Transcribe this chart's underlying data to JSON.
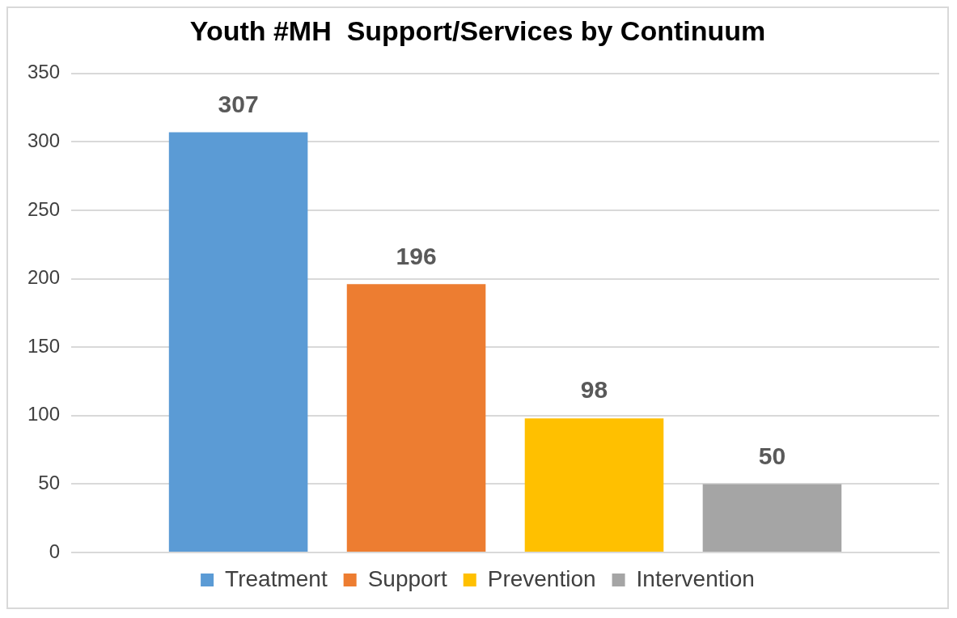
{
  "chart_data": {
    "type": "bar",
    "title": "Youth #MH  Support/Services by Continuum",
    "categories": [
      null
    ],
    "series": [
      {
        "name": "Treatment",
        "color": "#5b9bd5",
        "values": [
          307
        ]
      },
      {
        "name": "Support",
        "color": "#ed7d31",
        "values": [
          196
        ]
      },
      {
        "name": "Prevention",
        "color": "#ffc000",
        "values": [
          98
        ]
      },
      {
        "name": "Intervention",
        "color": "#a5a5a5",
        "values": [
          50
        ]
      }
    ],
    "ylim": [
      0,
      350
    ],
    "yticks": [
      0,
      50,
      100,
      150,
      200,
      250,
      300,
      350
    ],
    "grid": "y",
    "legend": "bottom",
    "data_labels": true
  }
}
